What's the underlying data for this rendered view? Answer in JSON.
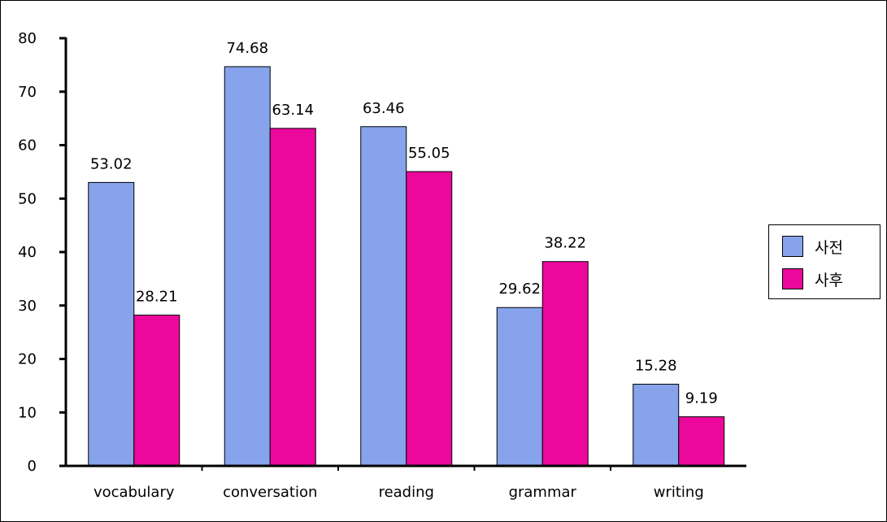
{
  "chart_data": {
    "type": "bar",
    "categories": [
      "vocabulary",
      "conversation",
      "reading",
      "grammar",
      "writing"
    ],
    "series": [
      {
        "name": "사전",
        "color": "#87a3ec",
        "values": [
          53.02,
          74.68,
          63.46,
          29.62,
          15.28
        ]
      },
      {
        "name": "사후",
        "color": "#ec079d",
        "values": [
          28.21,
          63.14,
          55.05,
          38.22,
          9.19
        ]
      }
    ],
    "data_labels": [
      [
        "53.02",
        "74.68",
        "63.46",
        "29.62",
        "15.28"
      ],
      [
        "28.21",
        "63.14",
        "55.05",
        "38.22",
        "9.19"
      ]
    ],
    "ylim": [
      0,
      80
    ],
    "yticks": [
      "0",
      "10",
      "20",
      "30",
      "40",
      "50",
      "60",
      "70",
      "80"
    ],
    "grid": false,
    "legend_position": "right",
    "title": "",
    "xlabel": "",
    "ylabel": ""
  }
}
